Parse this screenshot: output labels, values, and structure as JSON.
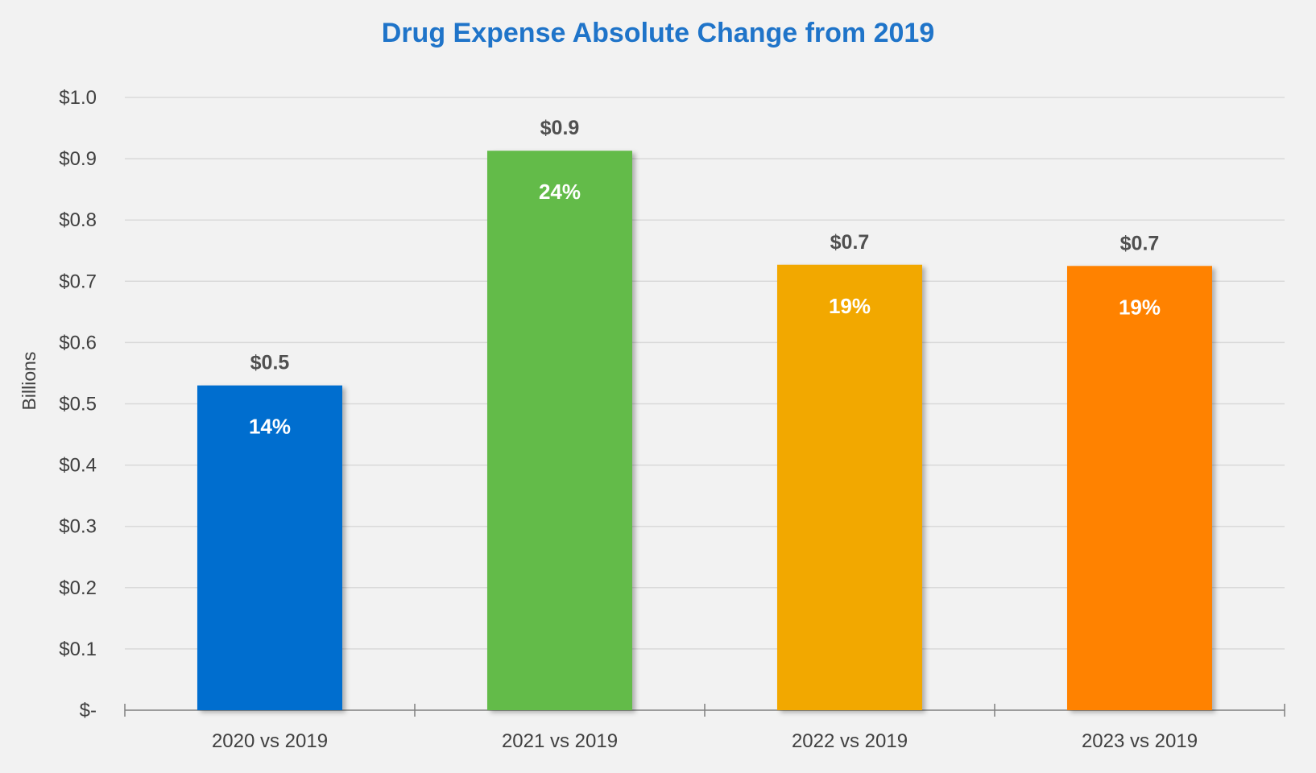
{
  "chart_data": {
    "type": "bar",
    "title": "Drug Expense Absolute Change from 2019",
    "ylabel": "Billions",
    "xlabel": "",
    "ylim": [
      0,
      1.0
    ],
    "y_ticks": [
      {
        "value": 0.0,
        "label": "$-"
      },
      {
        "value": 0.1,
        "label": "$0.1"
      },
      {
        "value": 0.2,
        "label": "$0.2"
      },
      {
        "value": 0.3,
        "label": "$0.3"
      },
      {
        "value": 0.4,
        "label": "$0.4"
      },
      {
        "value": 0.5,
        "label": "$0.5"
      },
      {
        "value": 0.6,
        "label": "$0.6"
      },
      {
        "value": 0.7,
        "label": "$0.7"
      },
      {
        "value": 0.8,
        "label": "$0.8"
      },
      {
        "value": 0.9,
        "label": "$0.9"
      },
      {
        "value": 1.0,
        "label": "$1.0"
      }
    ],
    "grid": true,
    "legend": "none",
    "categories": [
      "2020 vs 2019",
      "2021 vs 2019",
      "2022 vs 2019",
      "2023 vs 2019"
    ],
    "values": [
      0.53,
      0.913,
      0.727,
      0.725
    ],
    "value_labels": [
      "$0.5",
      "$0.9",
      "$0.7",
      "$0.7"
    ],
    "percent_labels": [
      "14%",
      "24%",
      "19%",
      "19%"
    ],
    "bar_colors": [
      "#006ecf",
      "#63bb48",
      "#f2a802",
      "#ff8200"
    ]
  }
}
